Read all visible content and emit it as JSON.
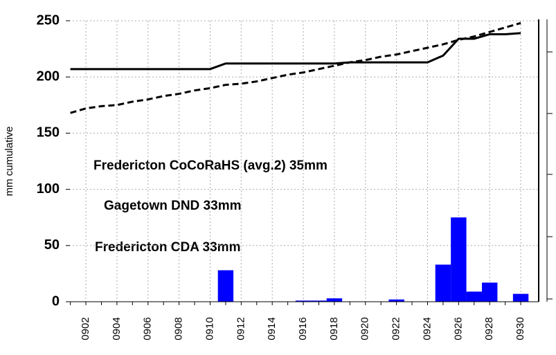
{
  "chart_data": {
    "type": "bar",
    "y_label": "mm cumulative",
    "annotations": [
      "Fredericton CoCoRaHS (avg.2) 35mm",
      "Gagetown DND 33mm",
      "Fredericton CDA 33mm"
    ],
    "categories": [
      null,
      "0902",
      null,
      "0904",
      null,
      "0906",
      null,
      "0908",
      null,
      "0910",
      null,
      "0912",
      null,
      "0914",
      null,
      "0916",
      null,
      "0918",
      null,
      "0920",
      null,
      "0922",
      null,
      "0924",
      null,
      "0926",
      null,
      "0928",
      null,
      "0930"
    ],
    "series": [
      {
        "type": "bar",
        "color": "#0000ff",
        "values": [
          0,
          0,
          0,
          0,
          0,
          0,
          0,
          0,
          0,
          0,
          28,
          0,
          0,
          0,
          0,
          1,
          1,
          3,
          0,
          0,
          0,
          2,
          0,
          0,
          33,
          75,
          9,
          17,
          0,
          7
        ]
      },
      {
        "type": "line",
        "color": "#000000",
        "dashed": false,
        "values": [
          207,
          207,
          207,
          207,
          207,
          207,
          207,
          207,
          207,
          207,
          212,
          212,
          212,
          212,
          212,
          212,
          212,
          212,
          213,
          213,
          213,
          213,
          213,
          213,
          219,
          234,
          234,
          238,
          238,
          239
        ]
      },
      {
        "type": "line",
        "color": "#000000",
        "dashed": true,
        "values": [
          168,
          172,
          174,
          175,
          178,
          180,
          183,
          185,
          188,
          190,
          193,
          194,
          196,
          199,
          202,
          204,
          207,
          210,
          213,
          215,
          218,
          220,
          223,
          226,
          229,
          233,
          236,
          240,
          244,
          248
        ]
      }
    ],
    "ylim": [
      0,
      250
    ],
    "yticks": [
      0,
      50,
      100,
      150,
      200,
      250
    ],
    "grid": true
  }
}
